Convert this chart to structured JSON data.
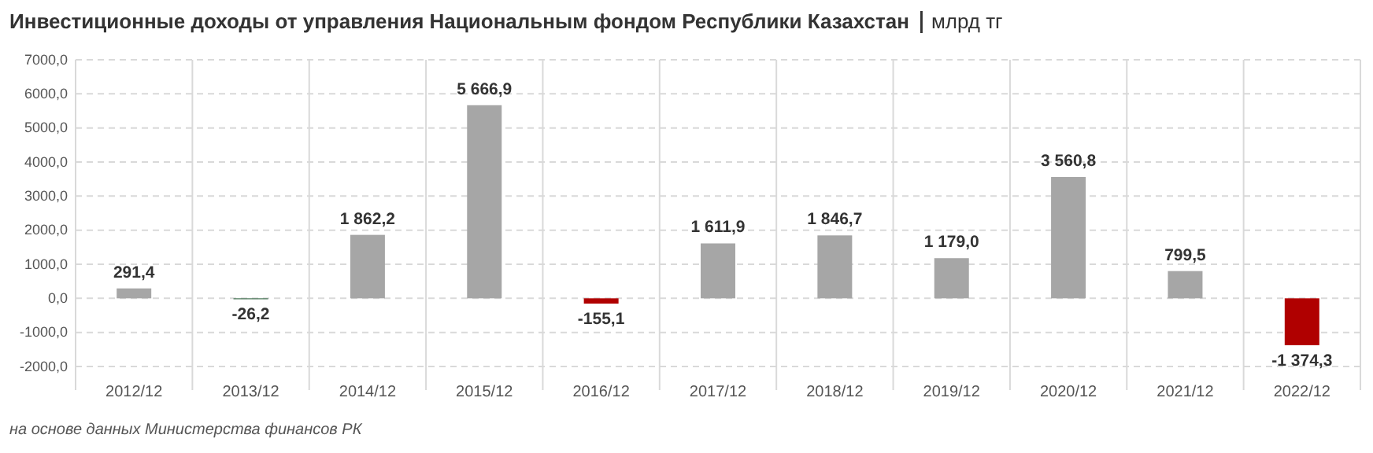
{
  "chart_data": {
    "type": "bar",
    "title": "Инвестиционные доходы от управления Национальным фондом Республики Казахстан",
    "subtitle": "млрд тг",
    "categories": [
      "2012/12",
      "2013/12",
      "2014/12",
      "2015/12",
      "2016/12",
      "2017/12",
      "2018/12",
      "2019/12",
      "2020/12",
      "2021/12",
      "2022/12"
    ],
    "values": [
      291.4,
      -26.2,
      1862.2,
      5666.9,
      -155.1,
      1611.9,
      1846.7,
      1179.0,
      3560.8,
      799.5,
      -1374.3
    ],
    "colors": [
      "#a6a6a6",
      "#3a6b4a",
      "#a6a6a6",
      "#a6a6a6",
      "#b00000",
      "#a6a6a6",
      "#a6a6a6",
      "#a6a6a6",
      "#a6a6a6",
      "#a6a6a6",
      "#b00000"
    ],
    "value_labels": [
      "291,4",
      "-26,2",
      "1 862,2",
      "5 666,9",
      "-155,1",
      "1 611,9",
      "1 846,7",
      "1 179,0",
      "3 560,8",
      "799,5",
      "-1 374,3"
    ],
    "ylim": [
      -2000,
      7000
    ],
    "yticks": [
      {
        "value": -2000,
        "label": "-2000,0"
      },
      {
        "value": -1000,
        "label": "-1000,0"
      },
      {
        "value": 0,
        "label": "0,0"
      },
      {
        "value": 1000,
        "label": "1000,0"
      },
      {
        "value": 2000,
        "label": "2000,0"
      },
      {
        "value": 3000,
        "label": "3000,0"
      },
      {
        "value": 4000,
        "label": "4000,0"
      },
      {
        "value": 5000,
        "label": "5000,0"
      },
      {
        "value": 6000,
        "label": "6000,0"
      },
      {
        "value": 7000,
        "label": "7000,0"
      }
    ],
    "grid": true,
    "annotations": [
      "на основе данных Министерства финансов РК"
    ]
  }
}
